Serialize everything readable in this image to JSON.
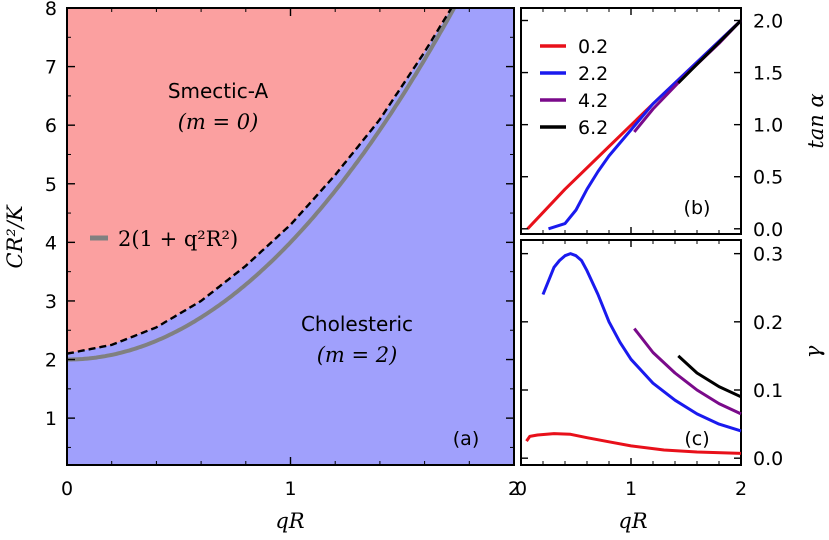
{
  "chart_data": [
    {
      "panel": "a",
      "type": "area",
      "panel_label": "(a)",
      "xlabel": "qR",
      "ylabel": "CR²/K",
      "xlim": [
        0,
        2
      ],
      "ylim": [
        0.2,
        8
      ],
      "xticks": [
        "0",
        "1",
        "2"
      ],
      "yticks": [
        "1",
        "2",
        "3",
        "4",
        "5",
        "6",
        "7",
        "8"
      ],
      "regions": [
        {
          "name": "Smectic-A",
          "sub": "(m = 0)",
          "color": "#fba0a0"
        },
        {
          "name": "Cholesteric",
          "sub": "(m = 2)",
          "color": "#a0a0fc"
        }
      ],
      "boundary_x": [
        0,
        0.2,
        0.4,
        0.6,
        0.8,
        1.0,
        1.2,
        1.4,
        1.6,
        1.72
      ],
      "boundary_y": [
        2.1,
        2.25,
        2.55,
        3.0,
        3.6,
        4.3,
        5.15,
        6.1,
        7.25,
        8.0
      ],
      "theory_legend": "2(1 + q²R²)",
      "theory_color": "#808080"
    },
    {
      "panel": "b",
      "type": "line",
      "panel_label": "(b)",
      "ylabel": "tan α",
      "xlim": [
        0,
        2
      ],
      "ylim": [
        -0.05,
        2.12
      ],
      "yticks": [
        "0.0",
        "0.5",
        "1.0",
        "1.5",
        "2.0"
      ],
      "legend_placement": "top-left",
      "series": [
        {
          "name": "0.2",
          "color": "#e8101a",
          "x": [
            0.06,
            0.4,
            0.8,
            1.2,
            1.6,
            2.0
          ],
          "y": [
            0.0,
            0.38,
            0.79,
            1.2,
            1.6,
            2.0
          ]
        },
        {
          "name": "2.2",
          "color": "#1a1aee",
          "x": [
            0.25,
            0.4,
            0.5,
            0.6,
            0.7,
            0.8,
            1.0,
            1.2,
            1.5,
            2.0
          ],
          "y": [
            0.0,
            0.05,
            0.18,
            0.38,
            0.55,
            0.7,
            0.95,
            1.2,
            1.5,
            2.0
          ]
        },
        {
          "name": "4.2",
          "color": "#7a0a8a",
          "x": [
            1.03,
            1.2,
            1.5,
            1.8,
            2.0
          ],
          "y": [
            0.93,
            1.15,
            1.48,
            1.78,
            2.0
          ]
        },
        {
          "name": "6.2",
          "color": "#000000",
          "x": [
            1.43,
            1.6,
            1.8,
            2.0
          ],
          "y": [
            1.4,
            1.58,
            1.79,
            2.0
          ]
        }
      ]
    },
    {
      "panel": "c",
      "type": "line",
      "panel_label": "(c)",
      "xlabel": "qR",
      "ylabel": "γ",
      "xlim": [
        0,
        2
      ],
      "ylim": [
        -0.01,
        0.32
      ],
      "xticks": [
        "0",
        "1",
        "2"
      ],
      "yticks": [
        "0.0",
        "0.1",
        "0.2",
        "0.3"
      ],
      "series": [
        {
          "name": "0.2",
          "color": "#e8101a",
          "x": [
            0.05,
            0.08,
            0.15,
            0.3,
            0.45,
            0.6,
            0.8,
            1.0,
            1.3,
            1.6,
            2.0
          ],
          "y": [
            0.025,
            0.032,
            0.034,
            0.036,
            0.035,
            0.03,
            0.024,
            0.018,
            0.012,
            0.009,
            0.007
          ]
        },
        {
          "name": "2.2",
          "color": "#1a1aee",
          "x": [
            0.2,
            0.25,
            0.3,
            0.35,
            0.4,
            0.45,
            0.5,
            0.55,
            0.6,
            0.7,
            0.8,
            0.9,
            1.0,
            1.2,
            1.4,
            1.6,
            1.8,
            2.0
          ],
          "y": [
            0.24,
            0.26,
            0.28,
            0.29,
            0.297,
            0.3,
            0.297,
            0.29,
            0.275,
            0.24,
            0.2,
            0.17,
            0.145,
            0.11,
            0.085,
            0.065,
            0.05,
            0.04
          ]
        },
        {
          "name": "4.2",
          "color": "#7a0a8a",
          "x": [
            1.03,
            1.2,
            1.4,
            1.6,
            1.8,
            2.0
          ],
          "y": [
            0.19,
            0.155,
            0.125,
            0.1,
            0.08,
            0.065
          ]
        },
        {
          "name": "6.2",
          "color": "#000000",
          "x": [
            1.43,
            1.6,
            1.8,
            2.0
          ],
          "y": [
            0.15,
            0.125,
            0.105,
            0.09
          ]
        }
      ]
    }
  ]
}
